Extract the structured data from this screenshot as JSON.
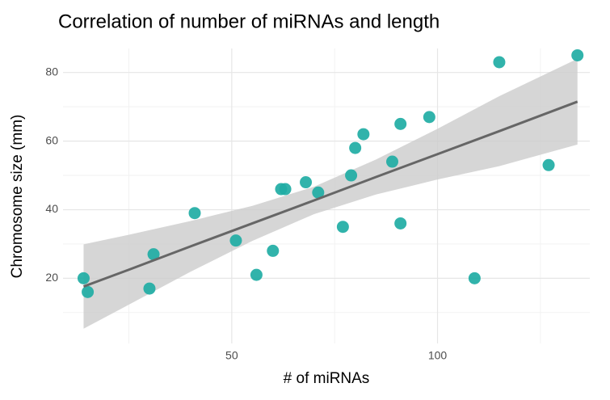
{
  "chart_data": {
    "type": "scatter",
    "title": "Correlation of number of miRNAs and length",
    "x_label": "# of miRNAs",
    "y_label": "Chromosome size (mm)",
    "color": "#20ada4",
    "x": [
      14,
      15,
      30,
      31,
      41,
      51,
      56,
      60,
      62,
      63,
      68,
      71,
      77,
      79,
      80,
      82,
      89,
      91,
      91,
      98,
      109,
      115,
      127,
      134
    ],
    "y": [
      20,
      16,
      17,
      27,
      39,
      31,
      21,
      28,
      46,
      46,
      48,
      45,
      35,
      50,
      58,
      62,
      54,
      65,
      36,
      67,
      20,
      83,
      53,
      85
    ],
    "fit": {
      "color": "#666666",
      "band_color": "#cccccc",
      "x": [
        14,
        25,
        40,
        55,
        70,
        85,
        100,
        115,
        134
      ],
      "y": [
        17.6,
        22.5,
        29.3,
        36.0,
        42.7,
        49.5,
        56.2,
        62.9,
        71.5
      ],
      "lower": [
        5.3,
        12.3,
        21.9,
        30.9,
        38.7,
        44.4,
        48.8,
        52.7,
        59.0
      ],
      "upper": [
        29.9,
        32.7,
        36.7,
        41.1,
        46.7,
        54.6,
        63.6,
        73.1,
        84.0
      ]
    },
    "xlim": [
      9,
      137
    ],
    "ylim": [
      1,
      87
    ],
    "xticks": [
      50,
      100
    ],
    "yticks": [
      20,
      40,
      60,
      80
    ],
    "xminor": [
      25,
      75,
      125
    ],
    "yminor": [
      10,
      30,
      50,
      70
    ],
    "grid": true
  }
}
